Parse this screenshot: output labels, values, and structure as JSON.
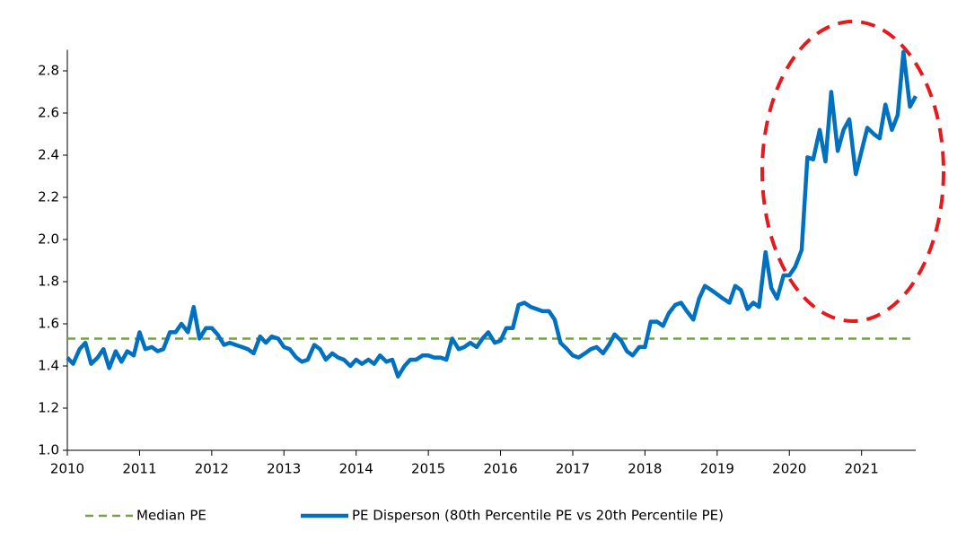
{
  "chart_data": {
    "type": "line",
    "x": [
      2010,
      2010.08,
      2010.17,
      2010.25,
      2010.33,
      2010.42,
      2010.5,
      2010.58,
      2010.67,
      2010.75,
      2010.83,
      2010.92,
      2011,
      2011.08,
      2011.17,
      2011.25,
      2011.33,
      2011.42,
      2011.5,
      2011.58,
      2011.67,
      2011.75,
      2011.83,
      2011.92,
      2012,
      2012.08,
      2012.17,
      2012.25,
      2012.33,
      2012.42,
      2012.5,
      2012.58,
      2012.67,
      2012.75,
      2012.83,
      2012.92,
      2013,
      2013.08,
      2013.17,
      2013.25,
      2013.33,
      2013.42,
      2013.5,
      2013.58,
      2013.67,
      2013.75,
      2013.83,
      2013.92,
      2014,
      2014.08,
      2014.17,
      2014.25,
      2014.33,
      2014.42,
      2014.5,
      2014.58,
      2014.67,
      2014.75,
      2014.83,
      2014.92,
      2015,
      2015.08,
      2015.17,
      2015.25,
      2015.33,
      2015.42,
      2015.5,
      2015.58,
      2015.67,
      2015.75,
      2015.83,
      2015.92,
      2016,
      2016.08,
      2016.17,
      2016.25,
      2016.33,
      2016.42,
      2016.5,
      2016.58,
      2016.67,
      2016.75,
      2016.83,
      2016.92,
      2017,
      2017.08,
      2017.17,
      2017.25,
      2017.33,
      2017.42,
      2017.5,
      2017.58,
      2017.67,
      2017.75,
      2017.83,
      2017.92,
      2018,
      2018.08,
      2018.17,
      2018.25,
      2018.33,
      2018.42,
      2018.5,
      2018.58,
      2018.67,
      2018.75,
      2018.83,
      2018.92,
      2019,
      2019.08,
      2019.17,
      2019.25,
      2019.33,
      2019.42,
      2019.5,
      2019.58,
      2019.67,
      2019.75,
      2019.83,
      2019.92,
      2020,
      2020.08,
      2020.17,
      2020.25,
      2020.33,
      2020.42,
      2020.5,
      2020.58,
      2020.67,
      2020.75,
      2020.83,
      2020.92,
      2021,
      2021.08,
      2021.17,
      2021.25,
      2021.33,
      2021.42,
      2021.5,
      2021.58,
      2021.67,
      2021.75
    ],
    "series": [
      {
        "name": "PE Disperson (80th Percentile PE vs 20th Percentile PE)",
        "color": "#0070c0",
        "values": [
          1.44,
          1.41,
          1.48,
          1.51,
          1.41,
          1.44,
          1.48,
          1.39,
          1.47,
          1.42,
          1.47,
          1.45,
          1.56,
          1.48,
          1.49,
          1.47,
          1.48,
          1.56,
          1.56,
          1.6,
          1.56,
          1.68,
          1.53,
          1.58,
          1.58,
          1.55,
          1.5,
          1.51,
          1.5,
          1.49,
          1.48,
          1.46,
          1.54,
          1.51,
          1.54,
          1.53,
          1.49,
          1.48,
          1.44,
          1.42,
          1.43,
          1.5,
          1.48,
          1.43,
          1.46,
          1.44,
          1.43,
          1.4,
          1.43,
          1.41,
          1.43,
          1.41,
          1.45,
          1.42,
          1.43,
          1.35,
          1.4,
          1.43,
          1.43,
          1.45,
          1.45,
          1.44,
          1.44,
          1.43,
          1.53,
          1.48,
          1.49,
          1.51,
          1.49,
          1.53,
          1.56,
          1.51,
          1.52,
          1.58,
          1.58,
          1.69,
          1.7,
          1.68,
          1.67,
          1.66,
          1.66,
          1.62,
          1.51,
          1.48,
          1.45,
          1.44,
          1.46,
          1.48,
          1.49,
          1.46,
          1.5,
          1.55,
          1.52,
          1.47,
          1.45,
          1.49,
          1.49,
          1.61,
          1.61,
          1.59,
          1.65,
          1.69,
          1.7,
          1.66,
          1.62,
          1.72,
          1.78,
          1.76,
          1.74,
          1.72,
          1.7,
          1.78,
          1.76,
          1.67,
          1.7,
          1.68,
          1.94,
          1.77,
          1.72,
          1.83,
          1.83,
          1.87,
          1.95,
          2.39,
          2.38,
          2.52,
          2.37,
          2.7,
          2.42,
          2.52,
          2.57,
          2.31,
          2.42,
          2.53,
          2.5,
          2.48,
          2.64,
          2.52,
          2.59,
          2.89,
          2.63,
          2.68
        ]
      }
    ],
    "reference_lines": [
      {
        "name": "Median PE",
        "color": "#77a046",
        "value": 1.53,
        "dashed": true
      }
    ],
    "xlim": [
      2010,
      2021.75
    ],
    "xticks": [
      2010,
      2011,
      2012,
      2013,
      2014,
      2015,
      2016,
      2017,
      2018,
      2019,
      2020,
      2021
    ],
    "ylim": [
      1,
      2.9
    ],
    "yticks": [
      {
        "value": 1,
        "label": "1.0"
      },
      1.2,
      1.4,
      1.6,
      1.8,
      {
        "value": 2,
        "label": "2.0"
      },
      2.2,
      2.4,
      2.6,
      2.8
    ],
    "grid": false,
    "legend": "bottom"
  }
}
